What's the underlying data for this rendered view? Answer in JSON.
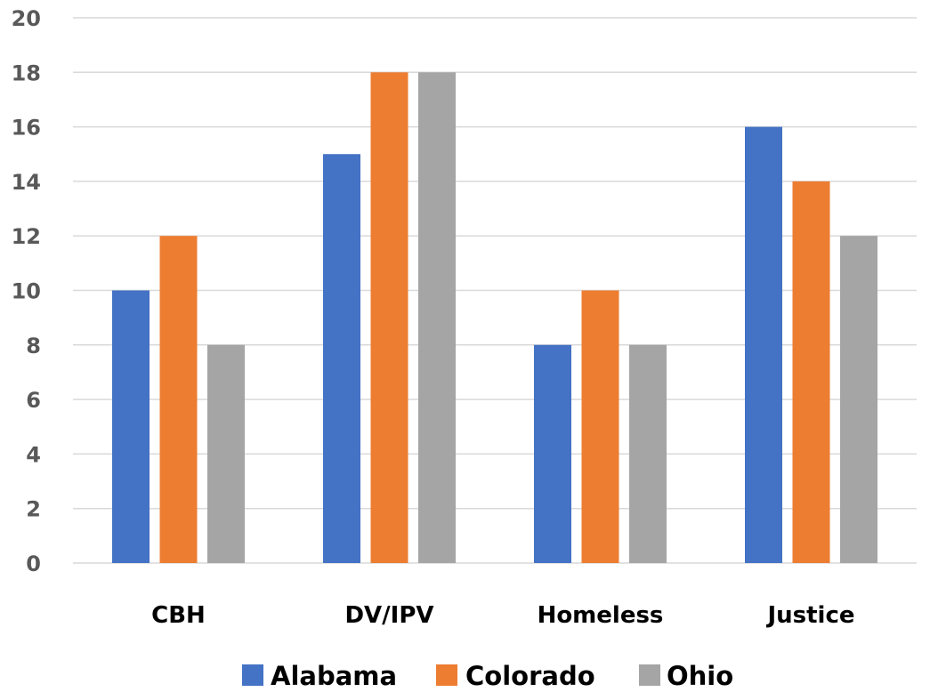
{
  "chart_data": {
    "type": "bar",
    "categories": [
      "CBH",
      "DV/IPV",
      "Homeless",
      "Justice"
    ],
    "series": [
      {
        "name": "Alabama",
        "values": [
          10,
          15,
          8,
          16
        ],
        "color": "#4472C4"
      },
      {
        "name": "Colorado",
        "values": [
          12,
          18,
          10,
          14
        ],
        "color": "#ED7D31"
      },
      {
        "name": "Ohio",
        "values": [
          8,
          18,
          8,
          12
        ],
        "color": "#A5A5A5"
      }
    ],
    "ylim": [
      0,
      20
    ],
    "yticks": [
      "0",
      "2",
      "4",
      "6",
      "8",
      "10",
      "12",
      "14",
      "16",
      "18",
      "20"
    ],
    "grid": true,
    "legend_position": "bottom"
  }
}
